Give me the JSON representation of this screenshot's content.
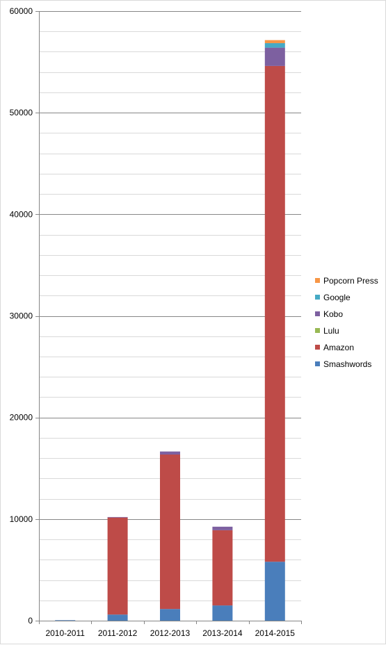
{
  "chart_data": {
    "type": "bar",
    "stacked": true,
    "title": "",
    "xlabel": "",
    "ylabel": "",
    "categories": [
      "2010-2011",
      "2011-2012",
      "2012-2013",
      "2013-2014",
      "2014-2015"
    ],
    "ylim": [
      0,
      60000
    ],
    "y_major_ticks": [
      0,
      10000,
      20000,
      30000,
      40000,
      50000,
      60000
    ],
    "y_minor_step": 2000,
    "grid": "horizontal",
    "legend_position": "right",
    "series": [
      {
        "name": "Smashwords",
        "color": "#4a7ebb",
        "values": [
          50,
          600,
          1150,
          1500,
          5800
        ]
      },
      {
        "name": "Amazon",
        "color": "#be4b48",
        "values": [
          0,
          9550,
          15200,
          7400,
          48800
        ]
      },
      {
        "name": "Lulu",
        "color": "#98b954",
        "values": [
          0,
          0,
          0,
          0,
          0
        ]
      },
      {
        "name": "Kobo",
        "color": "#7d60a0",
        "values": [
          0,
          50,
          300,
          350,
          1800
        ]
      },
      {
        "name": "Google",
        "color": "#46aac5",
        "values": [
          0,
          0,
          0,
          0,
          450
        ]
      },
      {
        "name": "Popcorn Press",
        "color": "#f79646",
        "values": [
          0,
          0,
          0,
          0,
          300
        ]
      }
    ]
  }
}
